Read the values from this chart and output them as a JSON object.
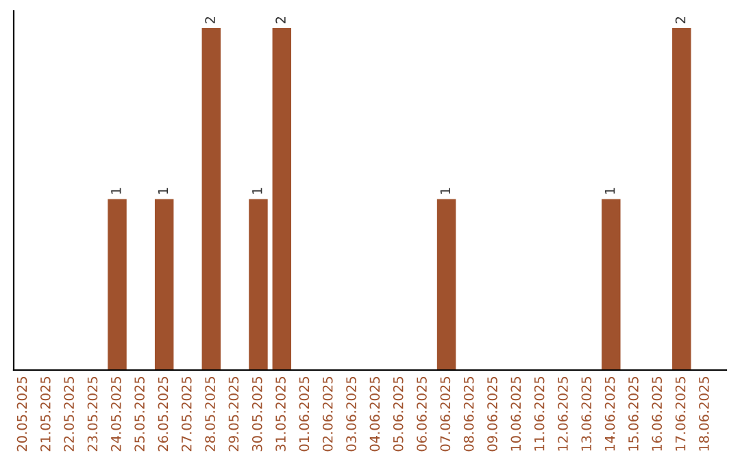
{
  "chart_data": {
    "type": "bar",
    "categories": [
      "20.05.2025",
      "21.05.2025",
      "22.05.2025",
      "23.05.2025",
      "24.05.2025",
      "25.05.2025",
      "26.05.2025",
      "27.05.2025",
      "28.05.2025",
      "29.05.2025",
      "30.05.2025",
      "31.05.2025",
      "01.06.2025",
      "02.06.2025",
      "03.06.2025",
      "04.06.2025",
      "05.06.2025",
      "06.06.2025",
      "07.06.2025",
      "08.06.2025",
      "09.06.2025",
      "10.06.2025",
      "11.06.2025",
      "12.06.2025",
      "13.06.2025",
      "14.06.2025",
      "15.06.2025",
      "16.06.2025",
      "17.06.2025",
      "18.06.2025"
    ],
    "values": [
      0,
      0,
      0,
      0,
      1,
      0,
      1,
      0,
      2,
      0,
      1,
      2,
      0,
      0,
      0,
      0,
      0,
      0,
      1,
      0,
      0,
      0,
      0,
      0,
      0,
      1,
      0,
      0,
      2,
      0
    ],
    "value_labels": [
      null,
      null,
      null,
      null,
      "1",
      null,
      "1",
      null,
      "2",
      null,
      "1",
      "2",
      null,
      null,
      null,
      null,
      null,
      null,
      "1",
      null,
      null,
      null,
      null,
      null,
      null,
      "1",
      null,
      null,
      "2",
      null
    ],
    "color": "#a0522d",
    "grid": false,
    "legend": false
  }
}
